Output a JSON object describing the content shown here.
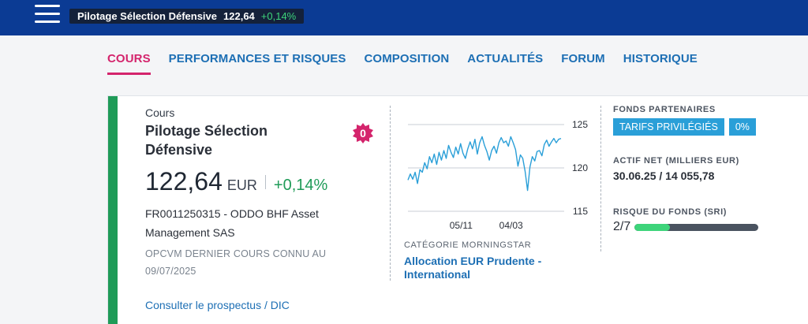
{
  "header": {
    "ticker_name": "Pilotage Sélection Défensive",
    "ticker_price": "122,64",
    "ticker_change": "+0,14%"
  },
  "tabs": [
    {
      "label": "COURS",
      "active": true
    },
    {
      "label": "PERFORMANCES ET RISQUES",
      "active": false
    },
    {
      "label": "COMPOSITION",
      "active": false
    },
    {
      "label": "ACTUALITÉS",
      "active": false
    },
    {
      "label": "FORUM",
      "active": false
    },
    {
      "label": "HISTORIQUE",
      "active": false
    }
  ],
  "fund": {
    "section_label": "Cours",
    "name": "Pilotage Sélection Défensive",
    "price": "122,64",
    "currency": "EUR",
    "change": "+0,14%",
    "isin_line": "FR0011250315 - ODDO BHF Asset Management SAS",
    "meta_line": "OPCVM DERNIER COURS CONNU AU",
    "meta_date": "09/07/2025",
    "prospectus_link": "Consulter le prospectus / DIC",
    "badge_value": "0"
  },
  "morningstar": {
    "label": "CATÉGORIE MORNINGSTAR",
    "value": "Allocation EUR Prudente - International"
  },
  "partners": {
    "label": "FONDS PARTENAIRES",
    "pill_tarifs": "TARIFS PRIVILÉGIÉS",
    "pill_pct": "0%"
  },
  "actif": {
    "label": "ACTIF NET (MILLIERS EUR)",
    "value": "30.06.25 / 14 055,78"
  },
  "risk": {
    "label": "RISQUE DU FONDS (SRI)",
    "value": "2/7",
    "level": 2,
    "max": 7
  },
  "colors": {
    "accent_tab": "#d4246c",
    "link_blue": "#1d6fb4",
    "positive_green": "#1f9b58",
    "header_blue": "#0b3b94",
    "line_blue": "#2a9fd8",
    "badge_pink": "#d4246c"
  },
  "icons": [
    "hamburger-menu-icon",
    "badge-star-icon"
  ],
  "chart_data": {
    "type": "line",
    "x_ticks": [
      "05/11",
      "04/03"
    ],
    "y_ticks": [
      115,
      120,
      125
    ],
    "ylim": [
      115,
      125
    ],
    "grid": true,
    "series": [
      {
        "values": [
          118.6,
          119.3,
          118.7,
          119.5,
          118.2,
          119.8,
          119.5,
          120.6,
          119.9,
          121.3,
          120.6,
          121.6,
          120.4,
          121.8,
          120.9,
          122.0,
          121.1,
          122.6,
          121.8,
          121.2,
          122.4,
          121.6,
          122.8,
          121.7,
          121.1,
          122.2,
          123.0,
          122.2,
          123.3,
          121.6,
          122.9,
          123.6,
          122.6,
          121.9,
          120.9,
          122.0,
          122.5,
          121.7,
          122.9,
          123.5,
          122.9,
          123.1,
          122.5,
          123.6,
          122.9,
          122.1,
          120.2,
          121.5,
          121.1,
          119.6,
          117.4,
          120.1,
          121.3,
          120.8,
          121.9,
          122.0,
          121.4,
          122.7,
          123.2,
          122.5,
          123.0,
          123.4,
          122.9,
          123.3,
          123.4
        ]
      }
    ]
  }
}
